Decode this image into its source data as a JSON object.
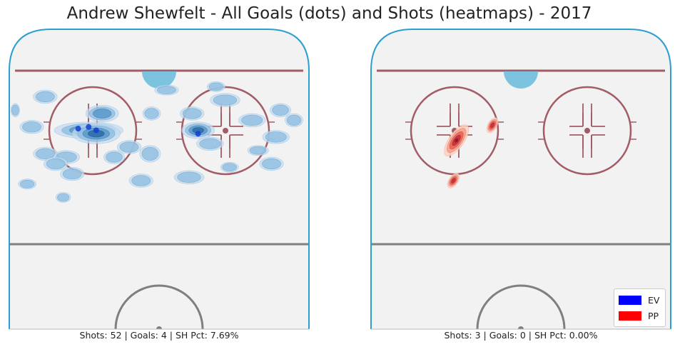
{
  "title": "Andrew Shewfelt - All Goals (dots) and Shots (heatmaps) - 2017",
  "chart_data": [
    {
      "type": "heatmap",
      "name": "EV",
      "color": "#0000ff",
      "caption": "Shots: 52 | Goals: 4 | SH Pct: 7.69%",
      "goals": [
        {
          "x": -54,
          "y": 51
        },
        {
          "x": -47,
          "y": 52
        },
        {
          "x": -42,
          "y": 50
        },
        {
          "x": 26,
          "y": 48
        }
      ],
      "shot_density": [
        {
          "x": -47,
          "y": 50,
          "rx": 23,
          "ry": 5,
          "level": 4
        },
        {
          "x": -42,
          "y": 48,
          "rx": 16,
          "ry": 6,
          "level": 3
        },
        {
          "x": -38,
          "y": 60,
          "rx": 11,
          "ry": 5,
          "level": 2
        },
        {
          "x": 26,
          "y": 50,
          "rx": 11,
          "ry": 5,
          "level": 3
        },
        {
          "x": 22,
          "y": 60,
          "rx": 8,
          "ry": 4,
          "level": 1
        },
        {
          "x": 34,
          "y": 42,
          "rx": 9,
          "ry": 4,
          "level": 1
        },
        {
          "x": -85,
          "y": 52,
          "rx": 8,
          "ry": 4,
          "level": 1
        },
        {
          "x": -20,
          "y": 40,
          "rx": 8,
          "ry": 4,
          "level": 1
        },
        {
          "x": -6,
          "y": 36,
          "rx": 7,
          "ry": 5,
          "level": 1
        },
        {
          "x": -5,
          "y": 60,
          "rx": 6,
          "ry": 4,
          "level": 1
        },
        {
          "x": -62,
          "y": 34,
          "rx": 9,
          "ry": 4,
          "level": 1
        },
        {
          "x": -76,
          "y": 36,
          "rx": 8,
          "ry": 4,
          "level": 1
        },
        {
          "x": -69,
          "y": 30,
          "rx": 8,
          "ry": 4,
          "level": 1
        },
        {
          "x": -30,
          "y": 34,
          "rx": 7,
          "ry": 4,
          "level": 1
        },
        {
          "x": -58,
          "y": 24,
          "rx": 8,
          "ry": 4,
          "level": 1
        },
        {
          "x": -12,
          "y": 20,
          "rx": 8,
          "ry": 4,
          "level": 1
        },
        {
          "x": 20,
          "y": 22,
          "rx": 10,
          "ry": 4,
          "level": 1
        },
        {
          "x": 47,
          "y": 28,
          "rx": 6,
          "ry": 3,
          "level": 1
        },
        {
          "x": 75,
          "y": 30,
          "rx": 8,
          "ry": 4,
          "level": 1
        },
        {
          "x": 66,
          "y": 38,
          "rx": 7,
          "ry": 3,
          "level": 1
        },
        {
          "x": 78,
          "y": 46,
          "rx": 9,
          "ry": 4,
          "level": 1
        },
        {
          "x": 90,
          "y": 56,
          "rx": 6,
          "ry": 4,
          "level": 1
        },
        {
          "x": 81,
          "y": 62,
          "rx": 7,
          "ry": 4,
          "level": 1
        },
        {
          "x": 62,
          "y": 56,
          "rx": 9,
          "ry": 4,
          "level": 1
        },
        {
          "x": 44,
          "y": 68,
          "rx": 10,
          "ry": 4,
          "level": 1
        },
        {
          "x": 38,
          "y": 76,
          "rx": 6,
          "ry": 3,
          "level": 1
        },
        {
          "x": -76,
          "y": 70,
          "rx": 8,
          "ry": 4,
          "level": 1
        },
        {
          "x": -96,
          "y": 62,
          "rx": 3,
          "ry": 4,
          "level": 1
        },
        {
          "x": 5,
          "y": 74,
          "rx": 8,
          "ry": 3,
          "level": 1
        },
        {
          "x": -88,
          "y": 18,
          "rx": 6,
          "ry": 3,
          "level": 1
        },
        {
          "x": -64,
          "y": 10,
          "rx": 5,
          "ry": 3,
          "level": 1
        }
      ]
    },
    {
      "type": "heatmap",
      "name": "PP",
      "color": "#ff0000",
      "caption": "Shots: 3 | Goals: 0 | SH Pct: 0.00%",
      "goals": [],
      "shot_density": [
        {
          "x": -43,
          "y": 44,
          "rx": 5,
          "ry": 11,
          "level": 4
        },
        {
          "x": -19,
          "y": 53,
          "rx": 3,
          "ry": 5,
          "level": 3
        },
        {
          "x": -45,
          "y": 20,
          "rx": 3,
          "ry": 5,
          "level": 3
        }
      ]
    }
  ],
  "legend": [
    {
      "label": "EV",
      "color": "#0000ff"
    },
    {
      "label": "PP",
      "color": "#ff0000"
    }
  ]
}
